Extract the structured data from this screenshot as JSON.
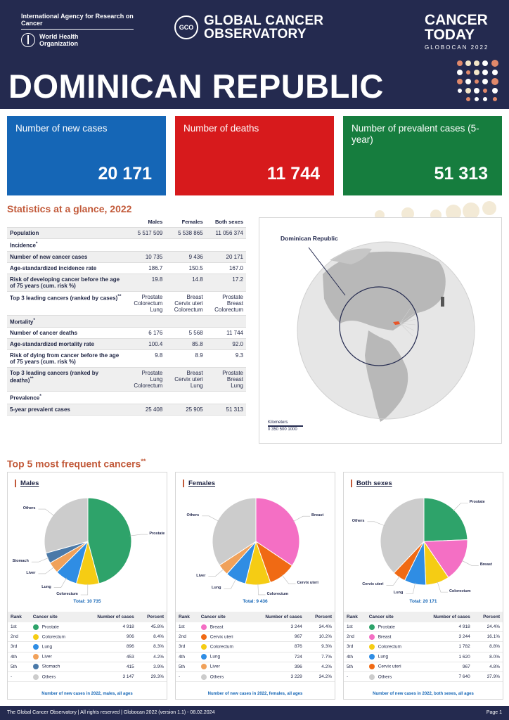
{
  "header": {
    "iarc": "International Agency for Research on Cancer",
    "who_line1": "World Health",
    "who_line2": "Organization",
    "gco_logo": "GCO",
    "gco_line1": "GLOBAL CANCER",
    "gco_line2": "OBSERVATORY",
    "ct_line1": "CANCER",
    "ct_line2": "TODAY",
    "ct_sub": "GLOBOCAN 2022",
    "country": "DOMINICAN REPUBLIC"
  },
  "boxes": {
    "cases_label": "Number of new cases",
    "cases_value": "20 171",
    "deaths_label": "Number of deaths",
    "deaths_value": "11 744",
    "prev_label": "Number of prevalent cases (5-year)",
    "prev_value": "51 313"
  },
  "stats": {
    "title": "Statistics at a glance, 2022",
    "cols": [
      "Males",
      "Females",
      "Both sexes"
    ],
    "population": {
      "label": "Population",
      "v": [
        "5 517 509",
        "5 538 865",
        "11 056 374"
      ]
    },
    "incidence_head": "Incidence",
    "new_cases": {
      "label": "Number of new cancer cases",
      "v": [
        "10 735",
        "9 436",
        "20 171"
      ]
    },
    "asr_inc": {
      "label": "Age-standardized incidence rate",
      "v": [
        "186.7",
        "150.5",
        "167.0"
      ]
    },
    "risk_inc": {
      "label": "Risk of developing cancer before the age of 75 years (cum. risk %)",
      "v": [
        "19.8",
        "14.8",
        "17.2"
      ]
    },
    "top_inc": {
      "label": "Top 3 leading cancers (ranked by cases)",
      "v": [
        "Prostate\nColorectum\nLung",
        "Breast\nCervix uteri\nColorectum",
        "Prostate\nBreast\nColorectum"
      ]
    },
    "mortality_head": "Mortality",
    "deaths": {
      "label": "Number of cancer deaths",
      "v": [
        "6 176",
        "5 568",
        "11 744"
      ]
    },
    "asr_mort": {
      "label": "Age-standardized mortality rate",
      "v": [
        "100.4",
        "85.8",
        "92.0"
      ]
    },
    "risk_mort": {
      "label": "Risk of dying from cancer before the age of 75 years (cum. risk %)",
      "v": [
        "9.8",
        "8.9",
        "9.3"
      ]
    },
    "top_mort": {
      "label": "Top 3 leading cancers (ranked by deaths)",
      "v": [
        "Prostate\nLung\nColorectum",
        "Breast\nCervix uteri\nLung",
        "Prostate\nBreast\nLung"
      ]
    },
    "prevalence_head": "Prevalence",
    "prev5": {
      "label": "5-year prevalent cases",
      "v": [
        "25 408",
        "25 905",
        "51 313"
      ]
    }
  },
  "map": {
    "label": "Dominican Republic",
    "scale_title": "Kilometers",
    "scale_ticks": "0  350 500      1000"
  },
  "top5": {
    "title": "Top 5 most frequent cancers",
    "rank_headers": [
      "Rank",
      "Cancer site",
      "Number of cases",
      "Percent"
    ]
  },
  "colors": {
    "Prostate": "#2ea36a",
    "Colorectum": "#f5cc14",
    "Lung": "#2f8de4",
    "Liver": "#f0a15a",
    "Stomach": "#4a79a8",
    "Others": "#cccccc",
    "Breast": "#f46fc4",
    "Cervix uteri": "#f06a14"
  },
  "chart_data": [
    {
      "type": "pie",
      "title": "Males",
      "total": "Total: 10 735",
      "caption": "Number of new cases in 2022, males, all ages",
      "rows": [
        {
          "rank": "1st",
          "site": "Prostate",
          "cases": "4 918",
          "percent": "45.8%",
          "value": 45.8
        },
        {
          "rank": "2nd",
          "site": "Colorectum",
          "cases": "906",
          "percent": "8.4%",
          "value": 8.4
        },
        {
          "rank": "3rd",
          "site": "Lung",
          "cases": "896",
          "percent": "8.3%",
          "value": 8.3
        },
        {
          "rank": "4th",
          "site": "Liver",
          "cases": "453",
          "percent": "4.2%",
          "value": 4.2
        },
        {
          "rank": "5th",
          "site": "Stomach",
          "cases": "415",
          "percent": "3.9%",
          "value": 3.9
        },
        {
          "rank": "-",
          "site": "Others",
          "cases": "3 147",
          "percent": "29.3%",
          "value": 29.3
        }
      ]
    },
    {
      "type": "pie",
      "title": "Females",
      "total": "Total: 9 436",
      "caption": "Number of new cases in 2022, females, all ages",
      "rows": [
        {
          "rank": "1st",
          "site": "Breast",
          "cases": "3 244",
          "percent": "34.4%",
          "value": 34.4
        },
        {
          "rank": "2nd",
          "site": "Cervix uteri",
          "cases": "967",
          "percent": "10.2%",
          "value": 10.2
        },
        {
          "rank": "3rd",
          "site": "Colorectum",
          "cases": "876",
          "percent": "9.3%",
          "value": 9.3
        },
        {
          "rank": "4th",
          "site": "Lung",
          "cases": "724",
          "percent": "7.7%",
          "value": 7.7
        },
        {
          "rank": "5th",
          "site": "Liver",
          "cases": "396",
          "percent": "4.2%",
          "value": 4.2
        },
        {
          "rank": "-",
          "site": "Others",
          "cases": "3 229",
          "percent": "34.2%",
          "value": 34.2
        }
      ]
    },
    {
      "type": "pie",
      "title": "Both sexes",
      "total": "Total: 20 171",
      "caption": "Number of new cases in 2022, both sexes, all ages",
      "rows": [
        {
          "rank": "1st",
          "site": "Prostate",
          "cases": "4 918",
          "percent": "24.4%",
          "value": 24.4
        },
        {
          "rank": "2nd",
          "site": "Breast",
          "cases": "3 244",
          "percent": "16.1%",
          "value": 16.1
        },
        {
          "rank": "3rd",
          "site": "Colorectum",
          "cases": "1 782",
          "percent": "8.8%",
          "value": 8.8
        },
        {
          "rank": "4th",
          "site": "Lung",
          "cases": "1 620",
          "percent": "8.0%",
          "value": 8.0
        },
        {
          "rank": "5th",
          "site": "Cervix uteri",
          "cases": "967",
          "percent": "4.8%",
          "value": 4.8
        },
        {
          "rank": "-",
          "site": "Others",
          "cases": "7 640",
          "percent": "37.9%",
          "value": 37.9
        }
      ]
    }
  ],
  "footer": {
    "left": "The Global Cancer Observatory | All rights reserved | Globocan 2022 (version 1.1) - 08.02.2024",
    "right": "Page 1"
  }
}
